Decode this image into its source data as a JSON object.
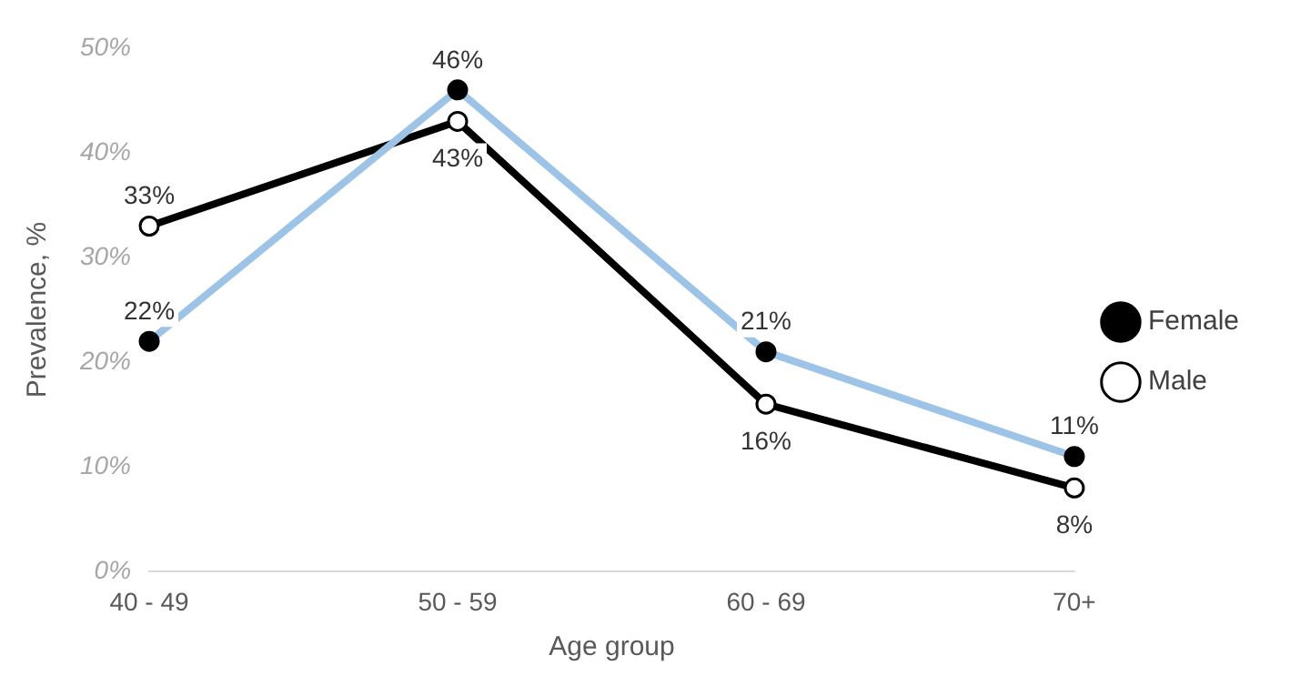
{
  "chart_data": {
    "type": "line",
    "xlabel": "Age group",
    "ylabel": "Prevalence, %",
    "categories": [
      "40 - 49",
      "50 - 59",
      "60 - 69",
      "70+"
    ],
    "series": [
      {
        "name": "Female",
        "color": "#9dc3e6",
        "values": [
          22,
          46,
          21,
          11
        ],
        "value_labels": [
          "22%",
          "46%",
          "21%",
          "11%"
        ]
      },
      {
        "name": "Male",
        "color": "#000000",
        "values": [
          33,
          43,
          16,
          8
        ],
        "value_labels": [
          "33%",
          "43%",
          "16%",
          "8%"
        ]
      }
    ],
    "ylim": [
      0,
      50
    ],
    "yticks": [
      {
        "value": 0,
        "label": "0%"
      },
      {
        "value": 10,
        "label": "10%"
      },
      {
        "value": 20,
        "label": "20%"
      },
      {
        "value": 30,
        "label": "30%"
      },
      {
        "value": 40,
        "label": "40%"
      },
      {
        "value": 50,
        "label": "50%"
      }
    ],
    "grid": false,
    "legend": "right",
    "marker": "circle",
    "line_style": "solid"
  }
}
